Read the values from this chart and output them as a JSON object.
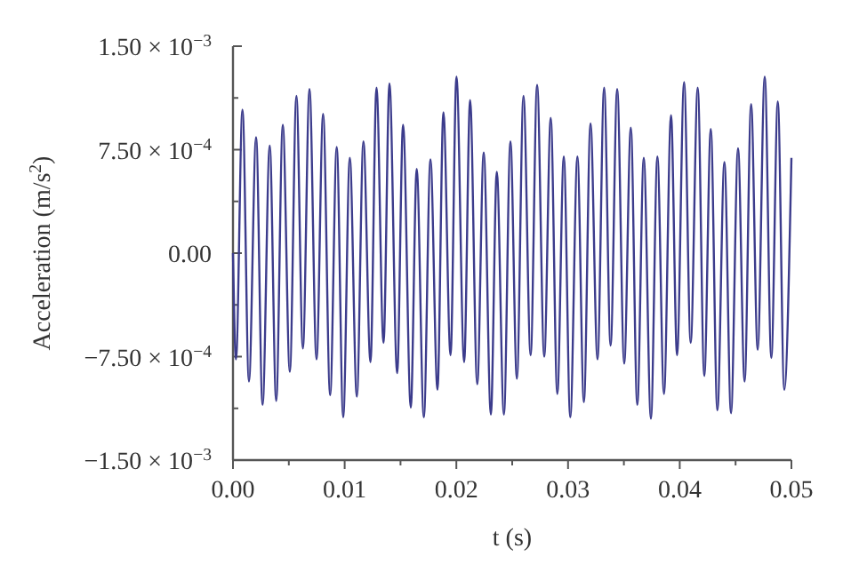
{
  "chart_data": {
    "type": "line",
    "xlabel": "t (s)",
    "ylabel": "Acceleration (m/s$^{2}$)",
    "xlim": [
      0,
      0.05
    ],
    "ylim": [
      -0.0015,
      0.0015
    ],
    "xticks": [
      {
        "value": 0,
        "label": "0.00"
      },
      {
        "value": 0.005,
        "label": null
      },
      {
        "value": 0.01,
        "label": "0.01"
      },
      {
        "value": 0.015,
        "label": null
      },
      {
        "value": 0.02,
        "label": "0.02"
      },
      {
        "value": 0.025,
        "label": null
      },
      {
        "value": 0.03,
        "label": "0.03"
      },
      {
        "value": 0.035,
        "label": null
      },
      {
        "value": 0.04,
        "label": "0.04"
      },
      {
        "value": 0.045,
        "label": null
      },
      {
        "value": 0.05,
        "label": "0.05"
      }
    ],
    "yticks": [
      {
        "value": -0.0015,
        "label": "−1.50 × 10$^{−3}$"
      },
      {
        "value": -0.001125,
        "label": null
      },
      {
        "value": -0.00075,
        "label": "−7.50 × 10$^{−4}$"
      },
      {
        "value": -0.000375,
        "label": null
      },
      {
        "value": 0,
        "label": "0.00"
      },
      {
        "value": 0.000375,
        "label": null
      },
      {
        "value": 0.00075,
        "label": "7.50 × 10$^{−4}$"
      },
      {
        "value": 0.001125,
        "label": null
      },
      {
        "value": 0.0015,
        "label": "1.50 × 10$^{−3}$"
      }
    ],
    "grid": false,
    "marker": "none",
    "line_style": "solid",
    "series": [
      {
        "color": "#3c3c8c",
        "x": [
          0,
          0.00027,
          0.00085,
          0.00143,
          0.00207,
          0.00265,
          0.00329,
          0.00387,
          0.00446,
          0.00509,
          0.00568,
          0.00626,
          0.00685,
          0.00748,
          0.00807,
          0.0087,
          0.00929,
          0.00987,
          0.01046,
          0.01109,
          0.01168,
          0.01231,
          0.01285,
          0.01348,
          0.01401,
          0.0147,
          0.01523,
          0.01592,
          0.01645,
          0.01709,
          0.01768,
          0.01831,
          0.01884,
          0.01948,
          0.02001,
          0.0207,
          0.02123,
          0.02187,
          0.02245,
          0.02309,
          0.02362,
          0.02426,
          0.02484,
          0.02542,
          0.02601,
          0.02665,
          0.02723,
          0.02787,
          0.02845,
          0.02904,
          0.02962,
          0.0302,
          0.03084,
          0.03142,
          0.03201,
          0.03264,
          0.03323,
          0.03381,
          0.0344,
          0.03503,
          0.03562,
          0.0362,
          0.03678,
          0.03742,
          0.038,
          0.03859,
          0.03922,
          0.03976,
          0.04039,
          0.04098,
          0.04161,
          0.0422,
          0.04278,
          0.04337,
          0.044,
          0.04459,
          0.04522,
          0.04581,
          0.04639,
          0.04698,
          0.04761,
          0.0482,
          0.04878,
          0.04936,
          0.05
        ],
        "values": [
          0,
          -0.00077,
          0.00104,
          -0.00093,
          0.00084,
          -0.0011,
          0.00078,
          -0.00107,
          0.00093,
          -0.00086,
          0.00114,
          -0.00069,
          0.00119,
          -0.00077,
          0.00101,
          -0.00103,
          0.00077,
          -0.00119,
          0.00069,
          -0.00104,
          0.00081,
          -0.00079,
          0.0012,
          -0.00065,
          0.00123,
          -0.00087,
          0.00093,
          -0.00112,
          0.00061,
          -0.00119,
          0.00068,
          -0.00099,
          0.00102,
          -0.00074,
          0.00128,
          -0.00079,
          0.00111,
          -0.00095,
          0.00073,
          -0.00117,
          0.00059,
          -0.00117,
          0.00081,
          -0.00091,
          0.00114,
          -0.00074,
          0.00122,
          -0.00075,
          0.00098,
          -0.00102,
          0.0007,
          -0.00119,
          0.0007,
          -0.00108,
          0.00094,
          -0.00077,
          0.0012,
          -0.00067,
          0.00119,
          -0.0008,
          0.00091,
          -0.0011,
          0.00069,
          -0.0012,
          0.0007,
          -0.00102,
          0.001,
          -0.00074,
          0.00124,
          -0.00065,
          0.0012,
          -0.00089,
          0.0009,
          -0.00114,
          0.00066,
          -0.00116,
          0.00076,
          -0.00093,
          0.00108,
          -0.0007,
          0.00128,
          -0.00076,
          0.0011,
          -0.00099,
          0.00069
        ]
      }
    ]
  }
}
